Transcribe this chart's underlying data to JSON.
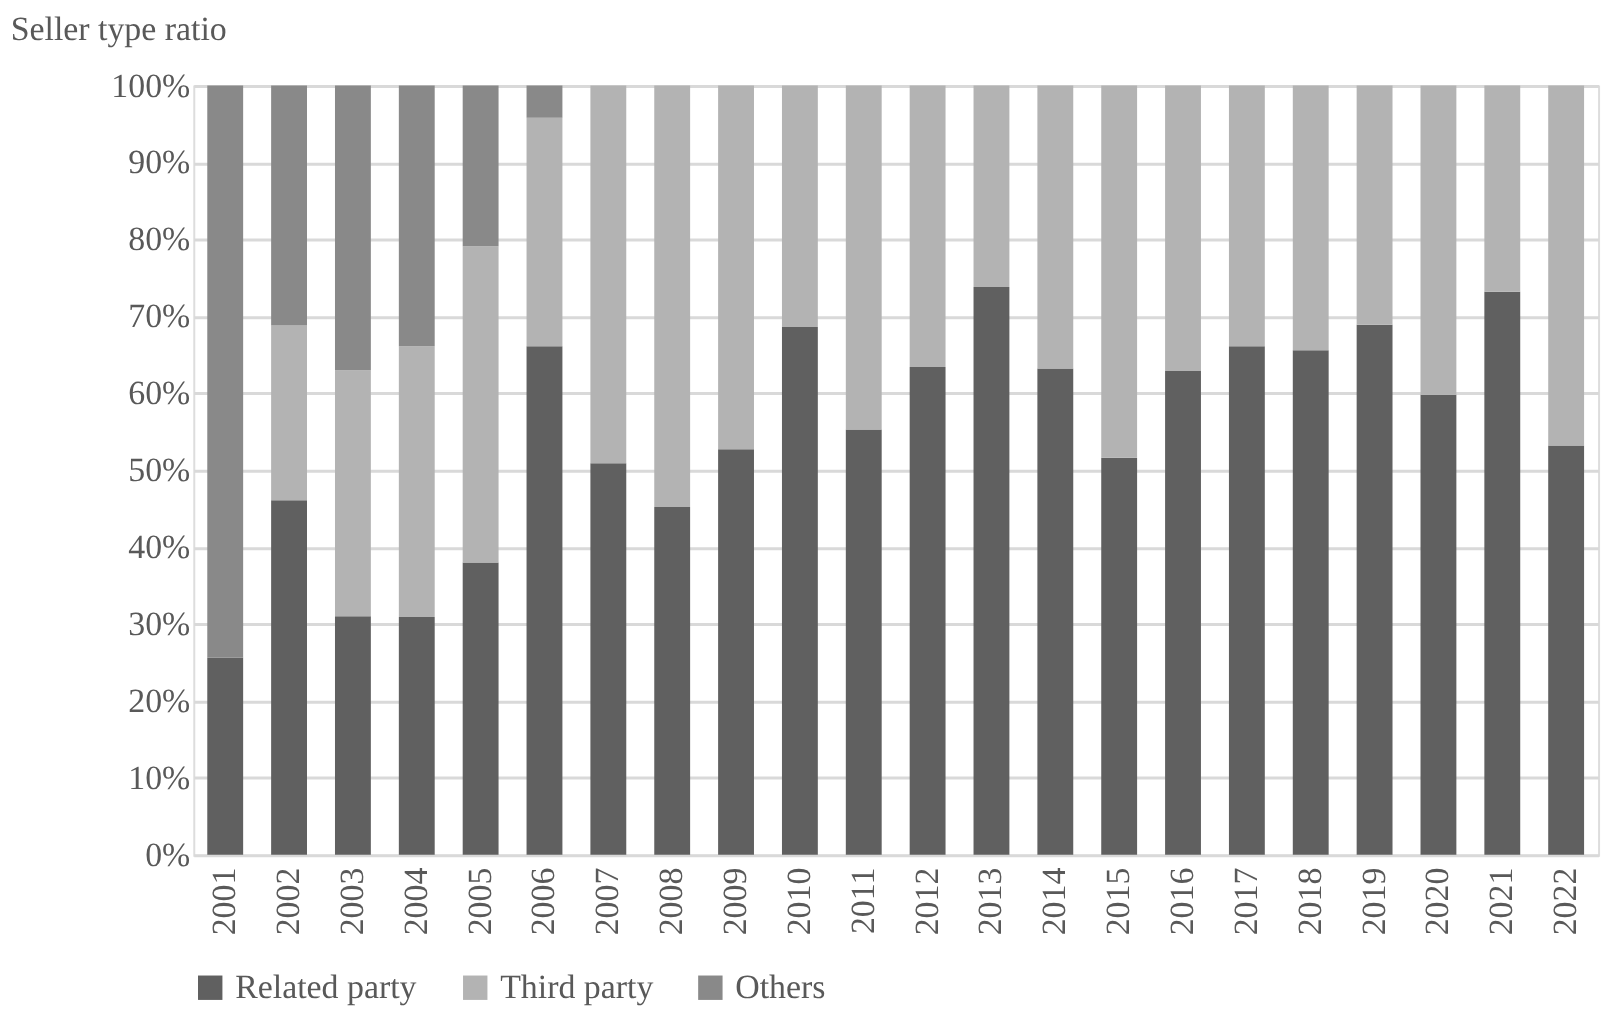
{
  "chart_data": {
    "type": "bar",
    "stacked": true,
    "ylabel": "Seller type ratio",
    "categories": [
      "2001",
      "2002",
      "2003",
      "2004",
      "2005",
      "2006",
      "2007",
      "2008",
      "2009",
      "2010",
      "2011",
      "2012",
      "2013",
      "2014",
      "2015",
      "2016",
      "2017",
      "2018",
      "2019",
      "2020",
      "2021",
      "2022"
    ],
    "series": [
      {
        "name": "Related party",
        "color": "#606060",
        "values": [
          25.6,
          46.1,
          31.0,
          30.9,
          38.0,
          66.1,
          50.9,
          45.2,
          52.7,
          68.6,
          55.3,
          63.4,
          73.8,
          63.2,
          51.6,
          62.9,
          66.1,
          65.6,
          68.9,
          59.8,
          73.2,
          53.2
        ]
      },
      {
        "name": "Third party",
        "color": "#b3b3b3",
        "values": [
          0,
          22.7,
          32.0,
          35.2,
          41.1,
          29.7,
          49.1,
          54.8,
          47.3,
          31.4,
          44.7,
          36.6,
          26.2,
          36.8,
          48.4,
          37.1,
          33.9,
          34.4,
          31.1,
          40.2,
          26.8,
          46.8
        ]
      },
      {
        "name": "Others",
        "color": "#898989",
        "values": [
          74.4,
          31.2,
          37.0,
          33.9,
          20.9,
          4.2,
          0,
          0,
          0,
          0,
          0,
          0,
          0,
          0,
          0,
          0,
          0,
          0,
          0,
          0,
          0,
          0
        ]
      }
    ],
    "ylim": [
      0,
      100
    ],
    "yticks": [
      {
        "value": 0,
        "label": "0%"
      },
      {
        "value": 10,
        "label": "10%"
      },
      {
        "value": 20,
        "label": "20%"
      },
      {
        "value": 30,
        "label": "30%"
      },
      {
        "value": 40,
        "label": "40%"
      },
      {
        "value": 50,
        "label": "50%"
      },
      {
        "value": 60,
        "label": "60%"
      },
      {
        "value": 70,
        "label": "70%"
      },
      {
        "value": 80,
        "label": "80%"
      },
      {
        "value": 90,
        "label": "90%"
      },
      {
        "value": 100,
        "label": "100%"
      }
    ],
    "grid": "y",
    "legend": "bottom"
  }
}
